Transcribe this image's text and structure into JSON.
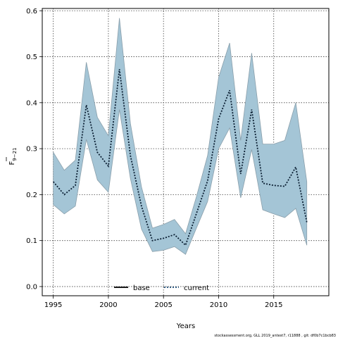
{
  "chart_data": {
    "type": "line",
    "xlabel": "Years",
    "ylabel_main": "F",
    "ylabel_sub": "9−21",
    "xlim": [
      1994,
      2020
    ],
    "ylim": [
      -0.02,
      0.605
    ],
    "x_ticks": [
      "1995",
      "2000",
      "2005",
      "2010",
      "2015"
    ],
    "y_ticks": [
      "0.0",
      "0.1",
      "0.2",
      "0.3",
      "0.4",
      "0.5",
      "0.6"
    ],
    "grid": true,
    "x": [
      1995,
      1996,
      1997,
      1998,
      1999,
      2000,
      2001,
      2002,
      2003,
      2004,
      2005,
      2006,
      2007,
      2008,
      2009,
      2010,
      2011,
      2012,
      2013,
      2014,
      2015,
      2016,
      2017,
      2018
    ],
    "series": [
      {
        "name": "current",
        "color": "#000000",
        "values": [
          0.228,
          0.2,
          0.22,
          0.395,
          0.292,
          0.262,
          0.473,
          0.285,
          0.175,
          0.1,
          0.105,
          0.113,
          0.09,
          0.16,
          0.23,
          0.365,
          0.427,
          0.245,
          0.385,
          0.225,
          0.22,
          0.218,
          0.26,
          0.14
        ],
        "lower": [
          0.178,
          0.158,
          0.175,
          0.32,
          0.232,
          0.205,
          0.385,
          0.235,
          0.125,
          0.076,
          0.079,
          0.087,
          0.07,
          0.128,
          0.185,
          0.3,
          0.345,
          0.193,
          0.298,
          0.167,
          0.158,
          0.15,
          0.17,
          0.09
        ],
        "upper": [
          0.292,
          0.253,
          0.275,
          0.488,
          0.368,
          0.328,
          0.584,
          0.355,
          0.217,
          0.127,
          0.135,
          0.146,
          0.115,
          0.197,
          0.285,
          0.455,
          0.53,
          0.318,
          0.508,
          0.31,
          0.31,
          0.318,
          0.4,
          0.228
        ]
      }
    ],
    "band_color": "#a4c5d6",
    "band_edge": "#8a9fab",
    "legend": {
      "placement": "bottom-center",
      "entries": [
        {
          "label": "base",
          "style": "solid",
          "color": "#000000"
        },
        {
          "label": "current",
          "style": "dotted",
          "color": "#1f4e79"
        }
      ]
    }
  },
  "footer": "stockassessment.org, GLL 2019_antest7, r11888 , git: df0b7c1bcb83"
}
